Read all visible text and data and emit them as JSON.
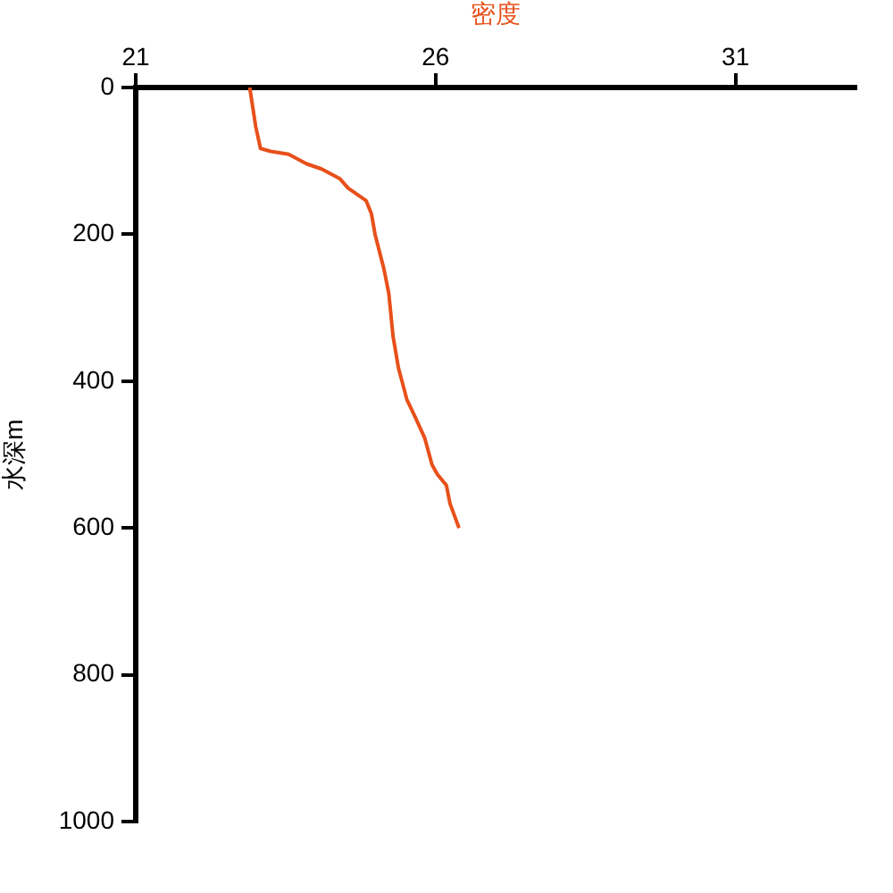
{
  "chart_data": {
    "type": "line",
    "xlabel": "密度",
    "ylabel": "水深m",
    "color": "#e8501a",
    "x": [
      22.9,
      23.0,
      23.08,
      23.25,
      23.55,
      23.85,
      24.1,
      24.4,
      24.54,
      24.84,
      24.93,
      24.99,
      25.14,
      25.22,
      25.29,
      25.38,
      25.52,
      25.67,
      25.82,
      25.94,
      26.03,
      26.18,
      26.24,
      26.39
    ],
    "values": [
      0,
      53,
      83,
      87,
      91,
      104,
      111,
      124,
      137,
      154,
      172,
      200,
      248,
      281,
      339,
      382,
      425,
      451,
      478,
      514,
      527,
      542,
      567,
      600
    ],
    "xlim": [
      21,
      33
    ],
    "xticks": [
      21,
      26,
      31
    ],
    "ylim": [
      1000,
      0
    ],
    "yticks": [
      0,
      200,
      400,
      600,
      800,
      1000
    ],
    "grid": false,
    "legend": false
  }
}
